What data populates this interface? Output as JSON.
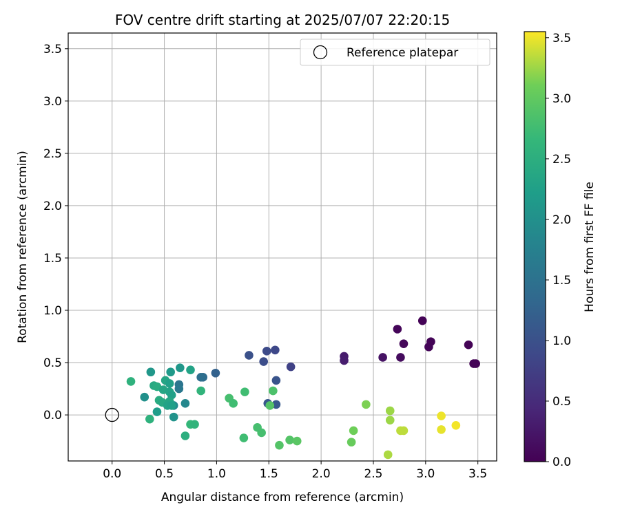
{
  "chart_data": {
    "type": "scatter",
    "title": "FOV centre drift starting at 2025/07/07 22:20:15",
    "xlabel": "Angular distance from reference (arcmin)",
    "ylabel": "Rotation from reference (arcmin)",
    "xlim": [
      -0.42,
      3.68
    ],
    "ylim": [
      -0.44,
      3.65
    ],
    "xticks": [
      "0.0",
      "0.5",
      "1.0",
      "1.5",
      "2.0",
      "2.5",
      "3.0",
      "3.5"
    ],
    "yticks": [
      "0.0",
      "0.5",
      "1.0",
      "1.5",
      "2.0",
      "2.5",
      "3.0",
      "3.5"
    ],
    "grid": true,
    "legend": {
      "placement": "top-right",
      "entries": [
        "Reference platepar"
      ]
    },
    "reference_point": {
      "x": 0.0,
      "y": 0.0
    },
    "colorbar": {
      "label": "Hours from first FF file",
      "range": [
        0.0,
        3.55
      ],
      "ticks": [
        "0.0",
        "0.5",
        "1.0",
        "1.5",
        "2.0",
        "2.5",
        "3.0",
        "3.5"
      ],
      "colormap": "viridis"
    },
    "series": [
      {
        "points": [
          {
            "x": 2.97,
            "y": 0.9,
            "c": 0.02
          },
          {
            "x": 2.73,
            "y": 0.82,
            "c": 0.06
          },
          {
            "x": 3.05,
            "y": 0.7,
            "c": 0.04
          },
          {
            "x": 3.41,
            "y": 0.67,
            "c": 0.03
          },
          {
            "x": 2.79,
            "y": 0.68,
            "c": 0.08
          },
          {
            "x": 3.03,
            "y": 0.65,
            "c": 0.05
          },
          {
            "x": 3.46,
            "y": 0.49,
            "c": 0.02
          },
          {
            "x": 3.48,
            "y": 0.49,
            "c": 0.02
          },
          {
            "x": 2.22,
            "y": 0.56,
            "c": 0.3
          },
          {
            "x": 2.22,
            "y": 0.52,
            "c": 0.32
          },
          {
            "x": 2.59,
            "y": 0.55,
            "c": 0.2
          },
          {
            "x": 2.76,
            "y": 0.55,
            "c": 0.12
          },
          {
            "x": 1.56,
            "y": 0.62,
            "c": 0.88
          },
          {
            "x": 1.48,
            "y": 0.61,
            "c": 0.92
          },
          {
            "x": 1.31,
            "y": 0.57,
            "c": 1.0
          },
          {
            "x": 1.45,
            "y": 0.51,
            "c": 0.95
          },
          {
            "x": 1.71,
            "y": 0.46,
            "c": 0.8
          },
          {
            "x": 1.57,
            "y": 0.33,
            "c": 1.05
          },
          {
            "x": 1.49,
            "y": 0.11,
            "c": 1.1
          },
          {
            "x": 1.57,
            "y": 0.1,
            "c": 1.12
          },
          {
            "x": 0.99,
            "y": 0.4,
            "c": 1.25
          },
          {
            "x": 0.87,
            "y": 0.36,
            "c": 1.4
          },
          {
            "x": 0.85,
            "y": 0.36,
            "c": 1.45
          },
          {
            "x": 0.64,
            "y": 0.29,
            "c": 1.55
          },
          {
            "x": 0.64,
            "y": 0.25,
            "c": 1.6
          },
          {
            "x": 0.7,
            "y": 0.11,
            "c": 1.85
          },
          {
            "x": 0.59,
            "y": 0.09,
            "c": 1.9
          },
          {
            "x": 0.59,
            "y": -0.02,
            "c": 2.05
          },
          {
            "x": 0.31,
            "y": 0.17,
            "c": 2.0
          },
          {
            "x": 0.65,
            "y": 0.45,
            "c": 2.1
          },
          {
            "x": 0.56,
            "y": 0.41,
            "c": 2.15
          },
          {
            "x": 0.75,
            "y": 0.43,
            "c": 2.3
          },
          {
            "x": 0.37,
            "y": 0.41,
            "c": 2.1
          },
          {
            "x": 0.51,
            "y": 0.33,
            "c": 2.35
          },
          {
            "x": 0.55,
            "y": 0.3,
            "c": 2.25
          },
          {
            "x": 0.4,
            "y": 0.28,
            "c": 2.4
          },
          {
            "x": 0.43,
            "y": 0.27,
            "c": 2.45
          },
          {
            "x": 0.49,
            "y": 0.24,
            "c": 2.35
          },
          {
            "x": 0.55,
            "y": 0.22,
            "c": 2.3
          },
          {
            "x": 0.57,
            "y": 0.19,
            "c": 2.25
          },
          {
            "x": 0.45,
            "y": 0.14,
            "c": 2.45
          },
          {
            "x": 0.48,
            "y": 0.12,
            "c": 2.4
          },
          {
            "x": 0.55,
            "y": 0.13,
            "c": 2.35
          },
          {
            "x": 0.53,
            "y": 0.09,
            "c": 2.3
          },
          {
            "x": 0.57,
            "y": 0.09,
            "c": 2.25
          },
          {
            "x": 0.43,
            "y": 0.03,
            "c": 2.2
          },
          {
            "x": 0.18,
            "y": 0.32,
            "c": 2.55
          },
          {
            "x": 0.36,
            "y": -0.04,
            "c": 2.55
          },
          {
            "x": 0.85,
            "y": 0.23,
            "c": 2.6
          },
          {
            "x": 0.75,
            "y": -0.09,
            "c": 2.65
          },
          {
            "x": 0.79,
            "y": -0.09,
            "c": 2.6
          },
          {
            "x": 0.7,
            "y": -0.2,
            "c": 2.5
          },
          {
            "x": 1.12,
            "y": 0.16,
            "c": 2.8
          },
          {
            "x": 1.16,
            "y": 0.11,
            "c": 2.75
          },
          {
            "x": 1.27,
            "y": 0.22,
            "c": 2.75
          },
          {
            "x": 1.54,
            "y": 0.23,
            "c": 2.85
          },
          {
            "x": 1.51,
            "y": 0.09,
            "c": 2.9
          },
          {
            "x": 1.26,
            "y": -0.22,
            "c": 2.75
          },
          {
            "x": 1.39,
            "y": -0.12,
            "c": 2.8
          },
          {
            "x": 1.43,
            "y": -0.17,
            "c": 2.8
          },
          {
            "x": 1.6,
            "y": -0.29,
            "c": 2.9
          },
          {
            "x": 1.7,
            "y": -0.24,
            "c": 2.9
          },
          {
            "x": 1.77,
            "y": -0.25,
            "c": 2.95
          },
          {
            "x": 2.43,
            "y": 0.1,
            "c": 3.15
          },
          {
            "x": 2.31,
            "y": -0.15,
            "c": 3.1
          },
          {
            "x": 2.29,
            "y": -0.26,
            "c": 3.05
          },
          {
            "x": 2.66,
            "y": 0.04,
            "c": 3.25
          },
          {
            "x": 2.66,
            "y": -0.05,
            "c": 3.25
          },
          {
            "x": 2.76,
            "y": -0.15,
            "c": 3.35
          },
          {
            "x": 2.79,
            "y": -0.15,
            "c": 3.35
          },
          {
            "x": 2.64,
            "y": -0.38,
            "c": 3.3
          },
          {
            "x": 3.15,
            "y": -0.01,
            "c": 3.5
          },
          {
            "x": 3.15,
            "y": -0.14,
            "c": 3.48
          },
          {
            "x": 3.29,
            "y": -0.1,
            "c": 3.52
          }
        ]
      }
    ]
  }
}
